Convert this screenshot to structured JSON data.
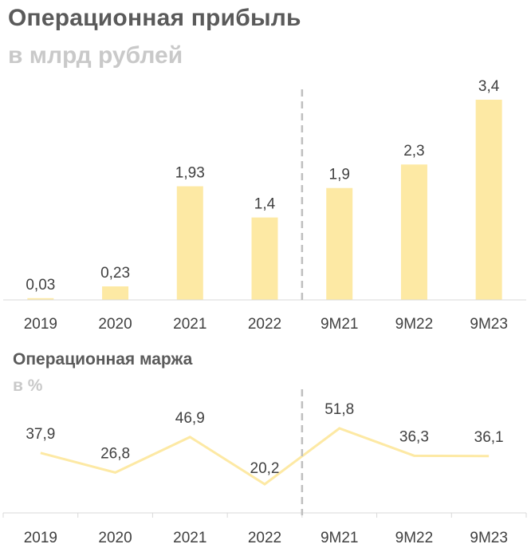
{
  "colors": {
    "bar": "#fde9a4",
    "line": "#fde9a4",
    "axis": "#d9d9d9",
    "divider": "#bfbfbf",
    "text": "#404040",
    "title": "#5a5a5a",
    "subtitle": "#c9c9c9"
  },
  "chart_data": [
    {
      "type": "bar",
      "title": "Операционная прибыль",
      "subtitle": "в млрд рублей",
      "categories": [
        "2019",
        "2020",
        "2021",
        "2022",
        "9M21",
        "9M22",
        "9M23"
      ],
      "values": [
        0.03,
        0.23,
        1.93,
        1.4,
        1.9,
        2.3,
        3.4
      ],
      "labels": [
        "0,03",
        "0,23",
        "1,93",
        "1,4",
        "1,9",
        "2,3",
        "3,4"
      ],
      "ylim": [
        0,
        3.4
      ],
      "divider_after_index": 3
    },
    {
      "type": "line",
      "title": "Операционная маржа",
      "subtitle": "в %",
      "categories": [
        "2019",
        "2020",
        "2021",
        "2022",
        "9M21",
        "9M22",
        "9M23"
      ],
      "values": [
        37.9,
        26.8,
        46.9,
        20.2,
        51.8,
        36.3,
        36.1
      ],
      "labels": [
        "37,9",
        "26,8",
        "46,9",
        "20,2",
        "51,8",
        "36,3",
        "36,1"
      ],
      "divider_after_index": 3
    }
  ]
}
